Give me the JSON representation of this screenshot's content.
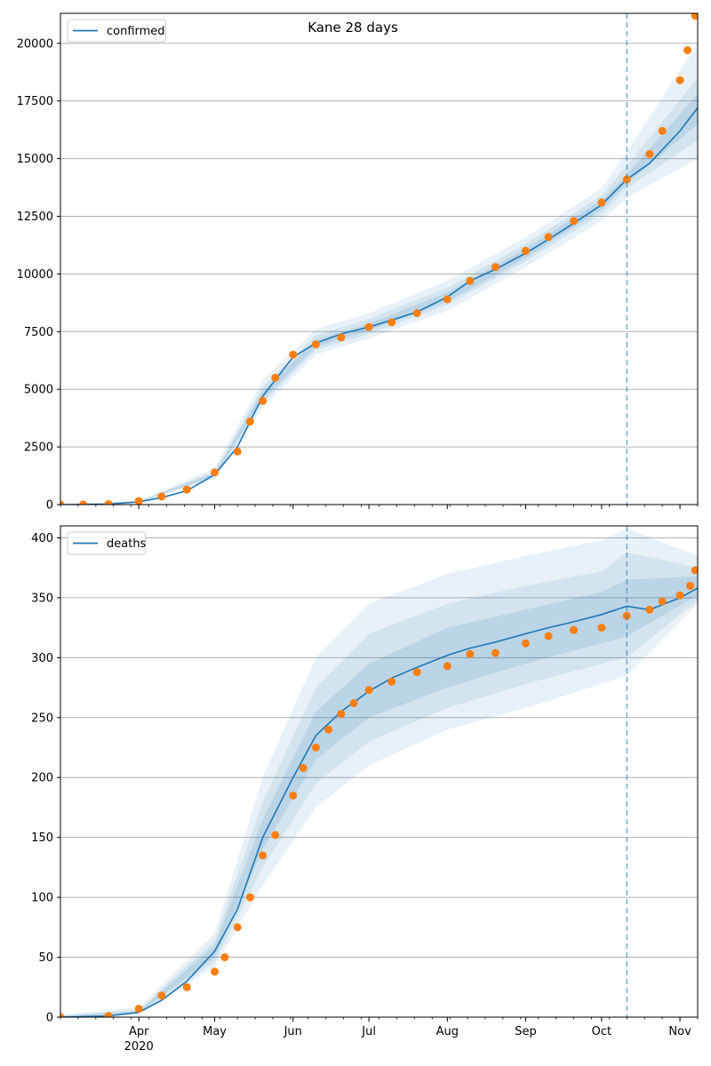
{
  "chart_data": [
    {
      "type": "line",
      "title": "Kane 28 days",
      "xlabel": "",
      "ylabel": "",
      "legend": "top-left",
      "grid": "horizontal",
      "ylim": [
        0,
        21300
      ],
      "xlim": [
        "2020-03-01",
        "2020-11-08"
      ],
      "yticks": [
        0,
        2500,
        5000,
        7500,
        10000,
        12500,
        15000,
        17500,
        20000
      ],
      "forecast_start": "2020-10-11",
      "series": [
        {
          "name": "confirmed",
          "kind": "model-line",
          "color": "#1f77b4",
          "x": [
            "2020-03-01",
            "2020-03-10",
            "2020-03-20",
            "2020-04-01",
            "2020-04-10",
            "2020-04-20",
            "2020-05-01",
            "2020-05-10",
            "2020-05-20",
            "2020-06-01",
            "2020-06-10",
            "2020-06-20",
            "2020-07-01",
            "2020-07-10",
            "2020-07-20",
            "2020-08-01",
            "2020-08-10",
            "2020-08-20",
            "2020-09-01",
            "2020-09-10",
            "2020-09-20",
            "2020-10-01",
            "2020-10-11",
            "2020-10-20",
            "2020-11-01",
            "2020-11-08"
          ],
          "values": [
            0,
            5,
            20,
            120,
            300,
            600,
            1300,
            2500,
            4700,
            6400,
            7000,
            7400,
            7700,
            8000,
            8350,
            9000,
            9700,
            10200,
            10900,
            11500,
            12200,
            13000,
            14100,
            14800,
            16200,
            17200
          ]
        },
        {
          "name": "",
          "kind": "observed",
          "color": "#ff7f0e",
          "x": [
            "2020-03-01",
            "2020-03-10",
            "2020-03-20",
            "2020-04-01",
            "2020-04-10",
            "2020-04-20",
            "2020-05-01",
            "2020-05-10",
            "2020-05-15",
            "2020-05-20",
            "2020-05-25",
            "2020-06-01",
            "2020-06-10",
            "2020-06-20",
            "2020-07-01",
            "2020-07-10",
            "2020-07-20",
            "2020-08-01",
            "2020-08-10",
            "2020-08-20",
            "2020-09-01",
            "2020-09-10",
            "2020-09-20",
            "2020-10-01",
            "2020-10-11",
            "2020-10-20",
            "2020-10-25",
            "2020-11-01",
            "2020-11-04",
            "2020-11-07"
          ],
          "values": [
            0,
            5,
            20,
            150,
            350,
            650,
            1400,
            2300,
            3600,
            4500,
            5500,
            6500,
            6950,
            7250,
            7700,
            7900,
            8300,
            8900,
            9700,
            10300,
            11000,
            11600,
            12300,
            13100,
            14100,
            15200,
            16200,
            18400,
            19700,
            21200
          ]
        }
      ],
      "bands": [
        {
          "name": "",
          "level": "outer",
          "x": [
            "2020-03-01",
            "2020-04-01",
            "2020-05-01",
            "2020-05-20",
            "2020-06-10",
            "2020-07-01",
            "2020-08-01",
            "2020-09-01",
            "2020-10-01",
            "2020-10-11",
            "2020-11-08"
          ],
          "lower": [
            0,
            90,
            1100,
            4200,
            6500,
            7200,
            8400,
            10300,
            12300,
            13300,
            15000
          ],
          "upper": [
            10,
            160,
            1600,
            5400,
            7600,
            8300,
            9700,
            11600,
            13700,
            15300,
            20000
          ]
        },
        {
          "name": "",
          "level": "middle",
          "x": [
            "2020-03-01",
            "2020-04-01",
            "2020-05-01",
            "2020-05-20",
            "2020-06-10",
            "2020-07-01",
            "2020-08-01",
            "2020-09-01",
            "2020-10-01",
            "2020-10-11",
            "2020-11-08"
          ],
          "lower": [
            0,
            100,
            1180,
            4400,
            6700,
            7400,
            8650,
            10550,
            12600,
            13700,
            15800
          ],
          "upper": [
            8,
            140,
            1450,
            5100,
            7350,
            8050,
            9400,
            11300,
            13400,
            14700,
            18500
          ]
        },
        {
          "name": "",
          "level": "inner",
          "x": [
            "2020-03-01",
            "2020-04-01",
            "2020-05-01",
            "2020-05-20",
            "2020-06-10",
            "2020-07-01",
            "2020-08-01",
            "2020-09-01",
            "2020-10-01",
            "2020-10-11",
            "2020-11-08"
          ],
          "lower": [
            0,
            110,
            1250,
            4550,
            6850,
            7550,
            8800,
            10700,
            12800,
            13900,
            16500
          ],
          "upper": [
            6,
            130,
            1380,
            4900,
            7150,
            7850,
            9200,
            11100,
            13200,
            14300,
            17800
          ]
        }
      ]
    },
    {
      "type": "line",
      "title": "",
      "xlabel": "",
      "ylabel": "",
      "legend": "top-left",
      "grid": "horizontal",
      "ylim": [
        0,
        410
      ],
      "xlim": [
        "2020-03-01",
        "2020-11-08"
      ],
      "yticks": [
        0,
        50,
        100,
        150,
        200,
        250,
        300,
        350,
        400
      ],
      "xticks": [
        {
          "date": "2020-04-01",
          "label": "Apr"
        },
        {
          "date": "2020-05-01",
          "label": "May"
        },
        {
          "date": "2020-06-01",
          "label": "Jun"
        },
        {
          "date": "2020-07-01",
          "label": "Jul"
        },
        {
          "date": "2020-08-01",
          "label": "Aug"
        },
        {
          "date": "2020-09-01",
          "label": "Sep"
        },
        {
          "date": "2020-10-01",
          "label": "Oct"
        },
        {
          "date": "2020-11-01",
          "label": "Nov"
        }
      ],
      "year_label": "2020",
      "forecast_start": "2020-10-11",
      "series": [
        {
          "name": "deaths",
          "kind": "model-line",
          "color": "#1f77b4",
          "x": [
            "2020-03-01",
            "2020-03-20",
            "2020-04-01",
            "2020-04-10",
            "2020-04-20",
            "2020-05-01",
            "2020-05-10",
            "2020-05-20",
            "2020-06-01",
            "2020-06-10",
            "2020-06-20",
            "2020-07-01",
            "2020-07-10",
            "2020-07-20",
            "2020-08-01",
            "2020-08-10",
            "2020-08-20",
            "2020-09-01",
            "2020-09-10",
            "2020-09-20",
            "2020-10-01",
            "2020-10-11",
            "2020-10-20",
            "2020-11-01",
            "2020-11-08"
          ],
          "values": [
            0,
            1,
            4,
            14,
            30,
            55,
            90,
            150,
            200,
            235,
            255,
            272,
            283,
            292,
            302,
            308,
            313,
            320,
            325,
            330,
            336,
            343,
            340,
            350,
            358
          ]
        },
        {
          "name": "",
          "kind": "observed",
          "color": "#ff7f0e",
          "x": [
            "2020-03-01",
            "2020-03-20",
            "2020-04-01",
            "2020-04-10",
            "2020-04-20",
            "2020-05-01",
            "2020-05-05",
            "2020-05-10",
            "2020-05-15",
            "2020-05-20",
            "2020-05-25",
            "2020-06-01",
            "2020-06-05",
            "2020-06-10",
            "2020-06-15",
            "2020-06-20",
            "2020-06-25",
            "2020-07-01",
            "2020-07-10",
            "2020-07-20",
            "2020-08-01",
            "2020-08-10",
            "2020-08-20",
            "2020-09-01",
            "2020-09-10",
            "2020-09-20",
            "2020-10-01",
            "2020-10-11",
            "2020-10-20",
            "2020-10-25",
            "2020-11-01",
            "2020-11-05",
            "2020-11-07"
          ],
          "values": [
            0,
            1,
            7,
            18,
            25,
            38,
            50,
            75,
            100,
            135,
            152,
            185,
            208,
            225,
            240,
            253,
            262,
            273,
            280,
            288,
            293,
            303,
            304,
            312,
            318,
            323,
            325,
            335,
            340,
            347,
            352,
            360,
            373
          ]
        }
      ],
      "bands": [
        {
          "name": "",
          "level": "outer",
          "x": [
            "2020-03-01",
            "2020-04-01",
            "2020-05-01",
            "2020-05-20",
            "2020-06-10",
            "2020-07-01",
            "2020-08-01",
            "2020-09-01",
            "2020-10-01",
            "2020-10-11",
            "2020-11-08"
          ],
          "lower": [
            0,
            2,
            42,
            110,
            175,
            210,
            240,
            258,
            278,
            285,
            345
          ],
          "upper": [
            2,
            8,
            70,
            200,
            300,
            345,
            370,
            385,
            398,
            408,
            385
          ]
        },
        {
          "name": "",
          "level": "middle",
          "x": [
            "2020-03-01",
            "2020-04-01",
            "2020-05-01",
            "2020-05-20",
            "2020-06-10",
            "2020-07-01",
            "2020-08-01",
            "2020-09-01",
            "2020-10-01",
            "2020-10-11",
            "2020-11-08"
          ],
          "lower": [
            0,
            3,
            46,
            125,
            195,
            230,
            258,
            278,
            295,
            300,
            348
          ],
          "upper": [
            1.5,
            6,
            64,
            180,
            275,
            320,
            345,
            360,
            372,
            388,
            375
          ]
        },
        {
          "name": "",
          "level": "inner",
          "x": [
            "2020-03-01",
            "2020-04-01",
            "2020-05-01",
            "2020-05-20",
            "2020-06-10",
            "2020-07-01",
            "2020-08-01",
            "2020-09-01",
            "2020-10-01",
            "2020-10-11",
            "2020-11-08"
          ],
          "lower": [
            0,
            3.5,
            50,
            140,
            215,
            250,
            275,
            295,
            312,
            318,
            352
          ],
          "upper": [
            1,
            5,
            60,
            165,
            255,
            295,
            325,
            340,
            355,
            365,
            368
          ]
        }
      ]
    }
  ]
}
